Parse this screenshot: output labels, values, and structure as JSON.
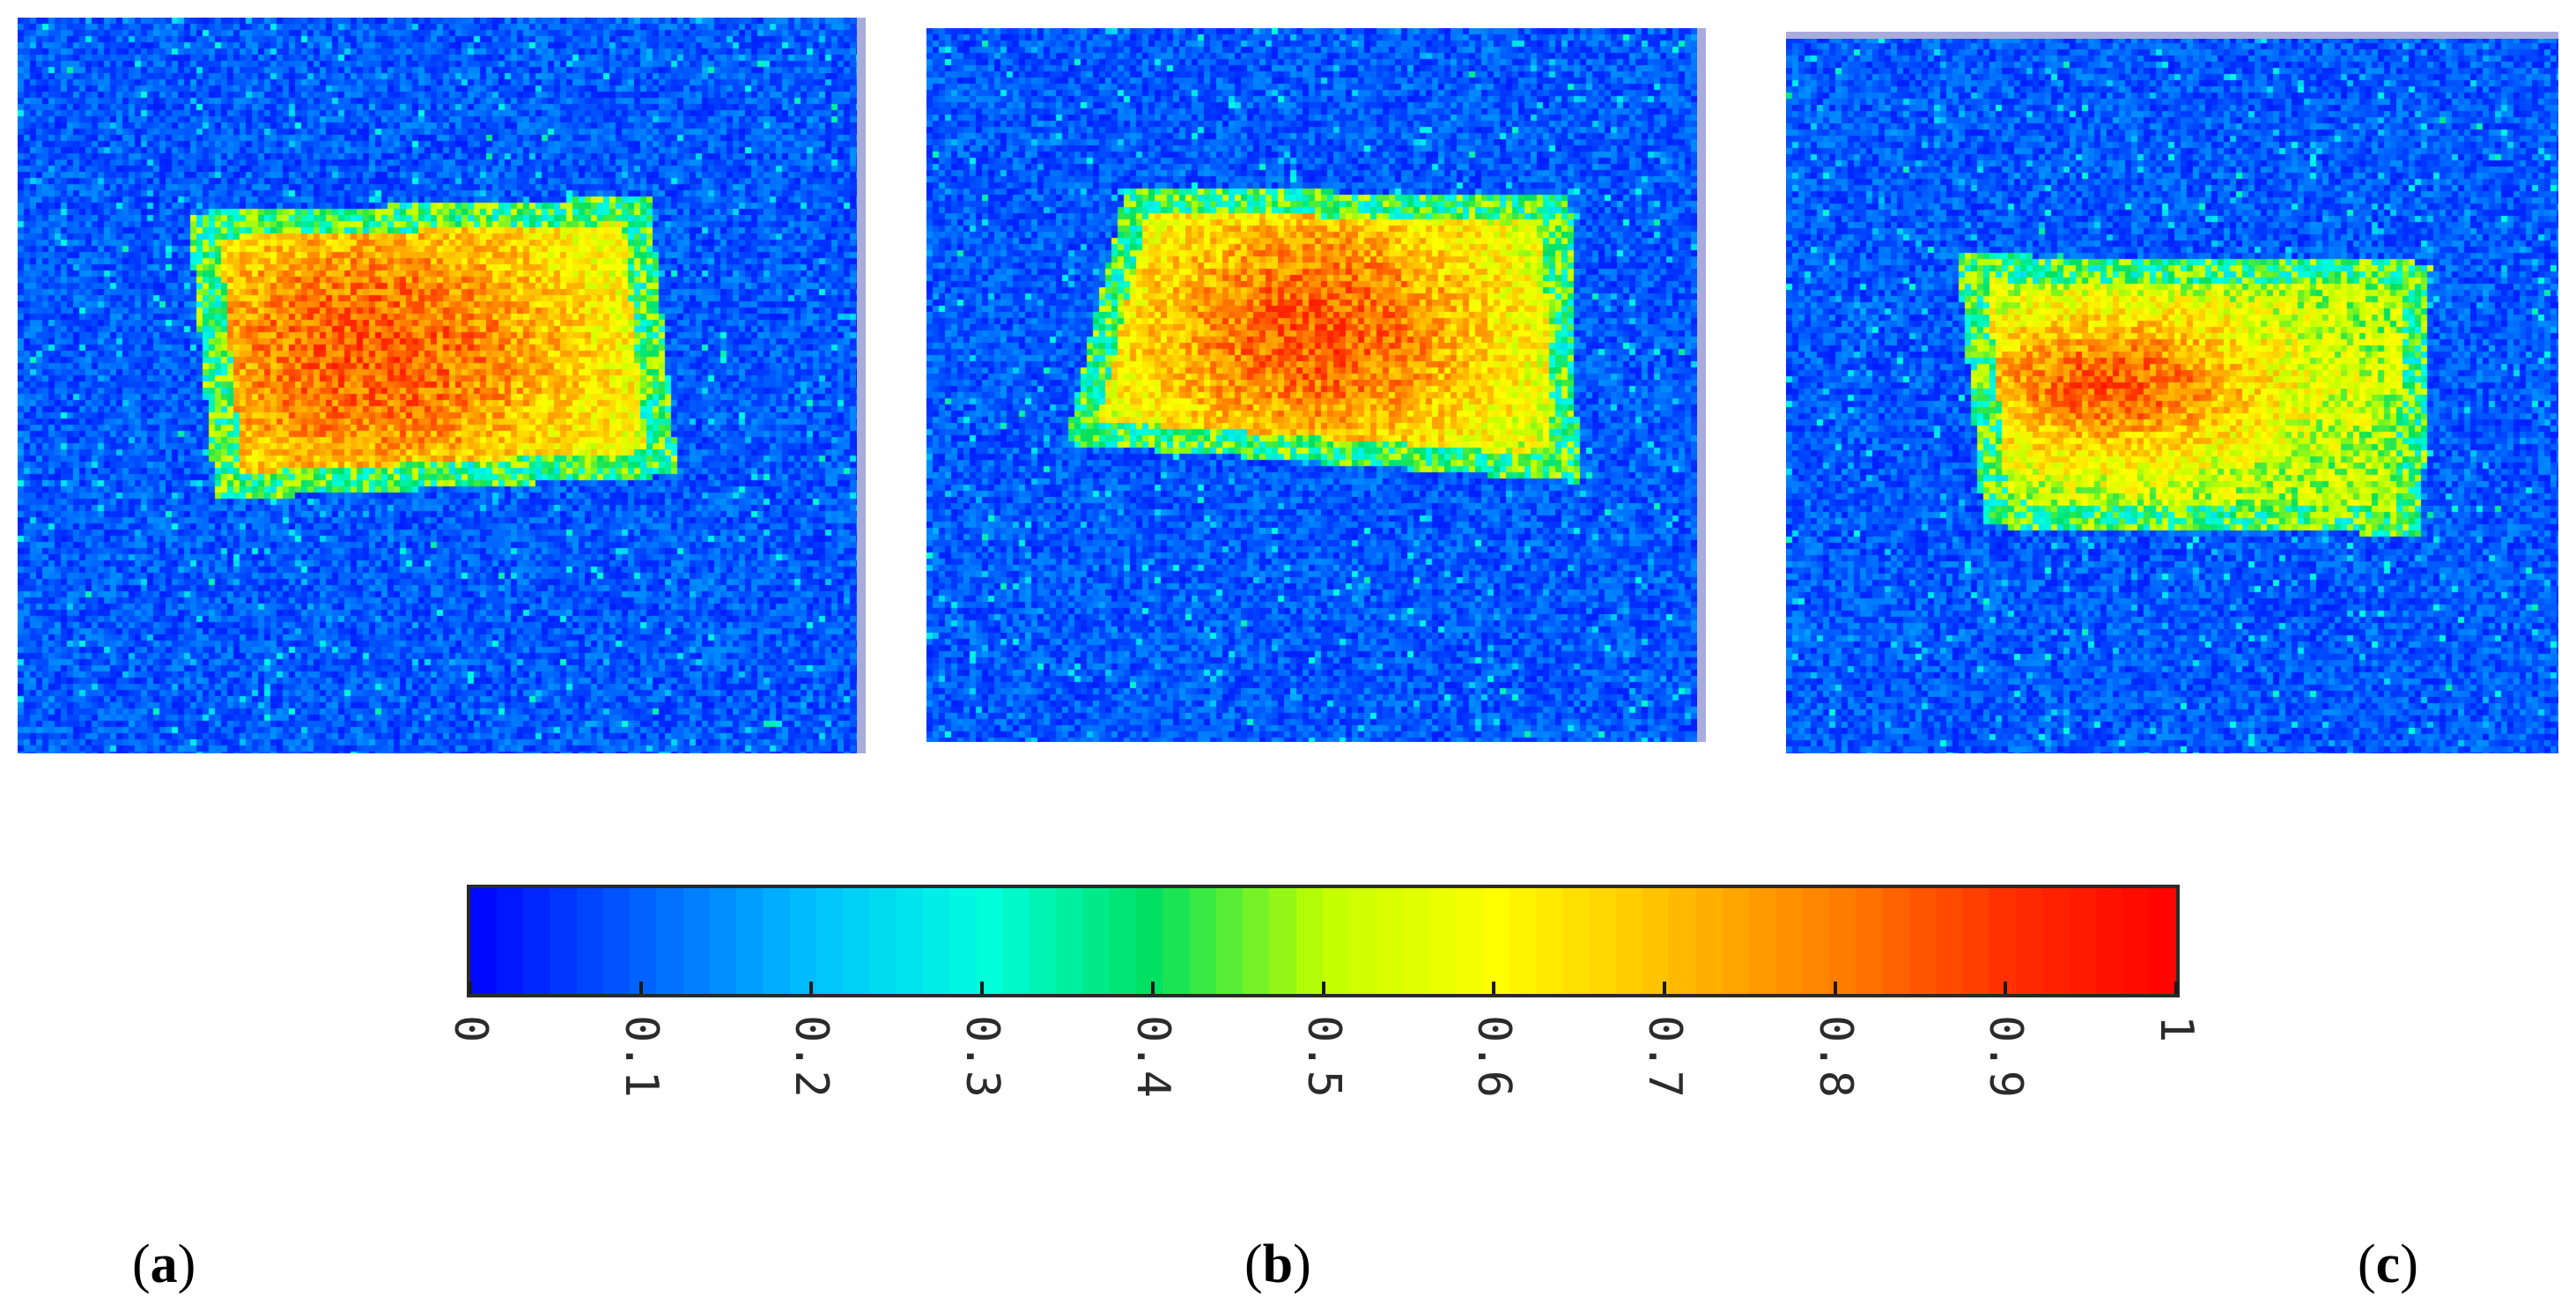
{
  "panels": [
    {
      "id": "a",
      "caption_letter": "a"
    },
    {
      "id": "b",
      "caption_letter": "b"
    },
    {
      "id": "c",
      "caption_letter": "c"
    }
  ],
  "colorbar": {
    "min": 0,
    "max": 1,
    "tick_labels": [
      "0",
      "0.1",
      "0.2",
      "0.3",
      "0.4",
      "0.5",
      "0.6",
      "0.7",
      "0.8",
      "0.9",
      "1"
    ],
    "colormap": [
      "#0000ff",
      "#0060ff",
      "#00c0ff",
      "#00ffe0",
      "#00e060",
      "#c0ff00",
      "#ffff00",
      "#ffc000",
      "#ff8000",
      "#ff3000",
      "#ff0000"
    ]
  }
}
